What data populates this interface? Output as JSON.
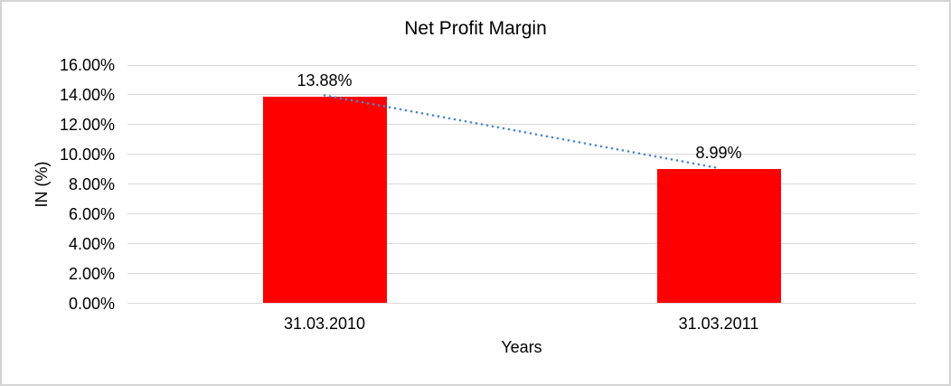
{
  "window": {
    "background": "#ffffff",
    "frame_border_color": "#d4d4d4"
  },
  "chart_data": {
    "type": "bar",
    "title": "Net Profit Margin",
    "xlabel": "Years",
    "ylabel": "IN (%)",
    "categories": [
      "31.03.2010",
      "31.03.2011"
    ],
    "values": [
      13.88,
      8.99
    ],
    "data_labels": [
      "13.88%",
      "8.99%"
    ],
    "ylim": [
      0,
      16
    ],
    "ytick_step": 2,
    "ytick_labels": [
      "16.00%",
      "14.00%",
      "12.00%",
      "10.00%",
      "8.00%",
      "6.00%",
      "4.00%",
      "2.00%",
      "0.00%"
    ],
    "grid": true,
    "gridline_color": "#d9d9d9",
    "legend": "none",
    "bar_color": "#ff0000",
    "text_color": "#000000",
    "trendline": {
      "type": "linear",
      "style": "dotted",
      "color": "#4e87c8",
      "from_value": 13.88,
      "to_value": 8.99
    }
  }
}
